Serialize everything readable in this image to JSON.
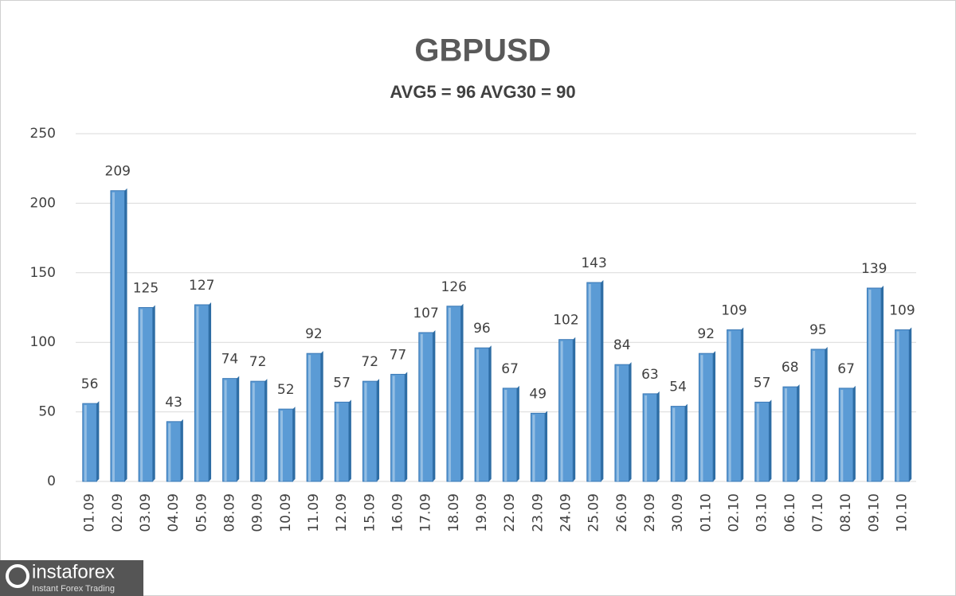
{
  "chart_data": {
    "type": "bar",
    "title": "GBPUSD",
    "subtitle": "AVG5 = 96 AVG30 = 90",
    "categories": [
      "01.09",
      "02.09",
      "03.09",
      "04.09",
      "05.09",
      "08.09",
      "09.09",
      "10.09",
      "11.09",
      "12.09",
      "15.09",
      "16.09",
      "17.09",
      "18.09",
      "19.09",
      "22.09",
      "23.09",
      "24.09",
      "25.09",
      "26.09",
      "29.09",
      "30.09",
      "01.10",
      "02.10",
      "03.10",
      "06.10",
      "07.10",
      "08.10",
      "09.10",
      "10.10"
    ],
    "values": [
      56,
      209,
      125,
      43,
      127,
      74,
      72,
      52,
      92,
      57,
      72,
      77,
      107,
      126,
      96,
      67,
      49,
      102,
      143,
      84,
      63,
      54,
      92,
      109,
      57,
      68,
      95,
      67,
      139,
      109
    ],
    "color": "#5b9bd5",
    "ylim": [
      0,
      250
    ],
    "yticks": [
      0,
      50,
      100,
      150,
      200,
      250
    ],
    "grid": true
  },
  "watermark": {
    "brand": "instaforex",
    "tagline": "Instant Forex Trading"
  }
}
